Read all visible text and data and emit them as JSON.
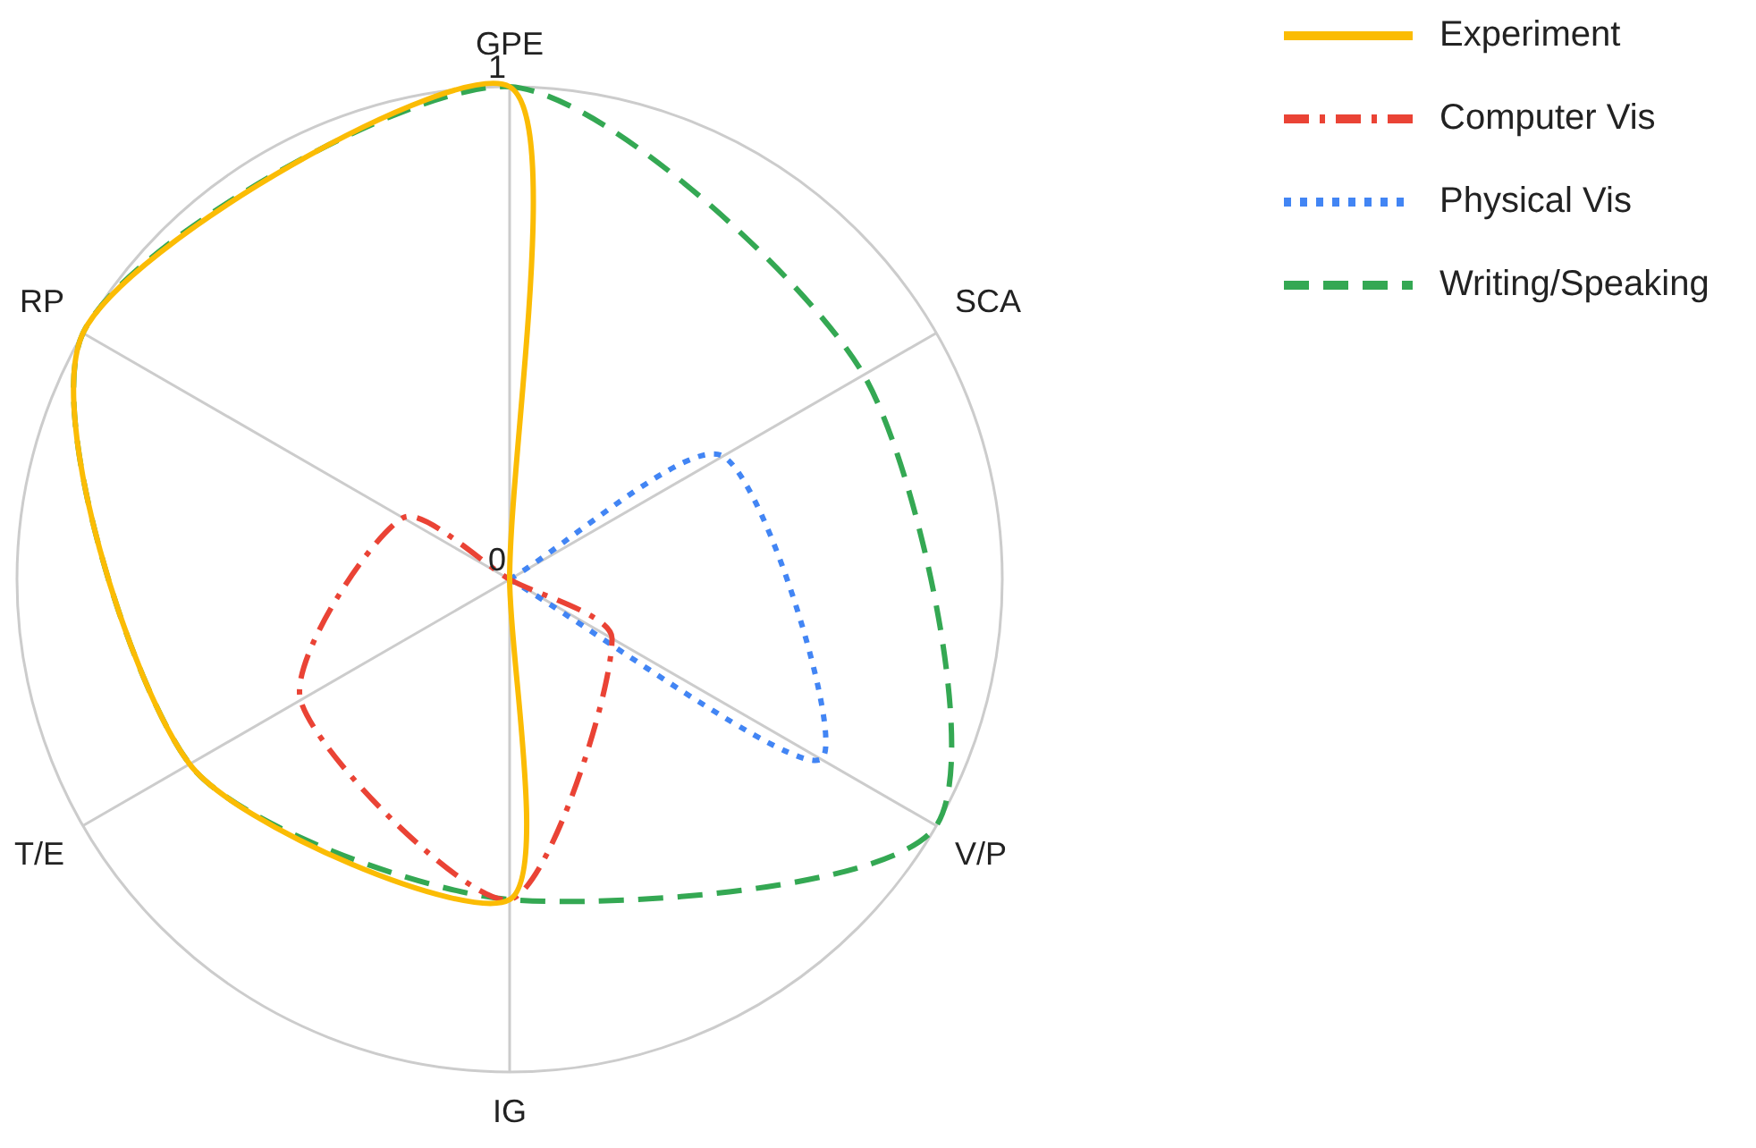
{
  "chart_data": {
    "type": "radar",
    "categories": [
      "GPE",
      "SCA",
      "V/P",
      "IG",
      "T/E",
      "RP"
    ],
    "series": [
      {
        "name": "Experiment",
        "color": "#fbbc04",
        "line_style": "solid",
        "values": [
          1,
          0,
          0,
          0.65,
          0.75,
          1
        ]
      },
      {
        "name": "Computer Vis",
        "color": "#ea4335",
        "line_style": "dashdot",
        "values": [
          0,
          0,
          0.24,
          0.65,
          0.49,
          0.25
        ]
      },
      {
        "name": "Physical Vis",
        "color": "#4285f4",
        "line_style": "dotted",
        "values": [
          0,
          0.5,
          0.73,
          0,
          0,
          0
        ]
      },
      {
        "name": "Writing/Speaking",
        "color": "#34a853",
        "line_style": "dashed",
        "values": [
          1,
          0.83,
          1,
          0.65,
          0.75,
          1
        ]
      }
    ],
    "ylim": [
      0,
      1
    ],
    "yticks": [
      0,
      1
    ],
    "grid": true,
    "legend": "top right",
    "marker": "none"
  }
}
